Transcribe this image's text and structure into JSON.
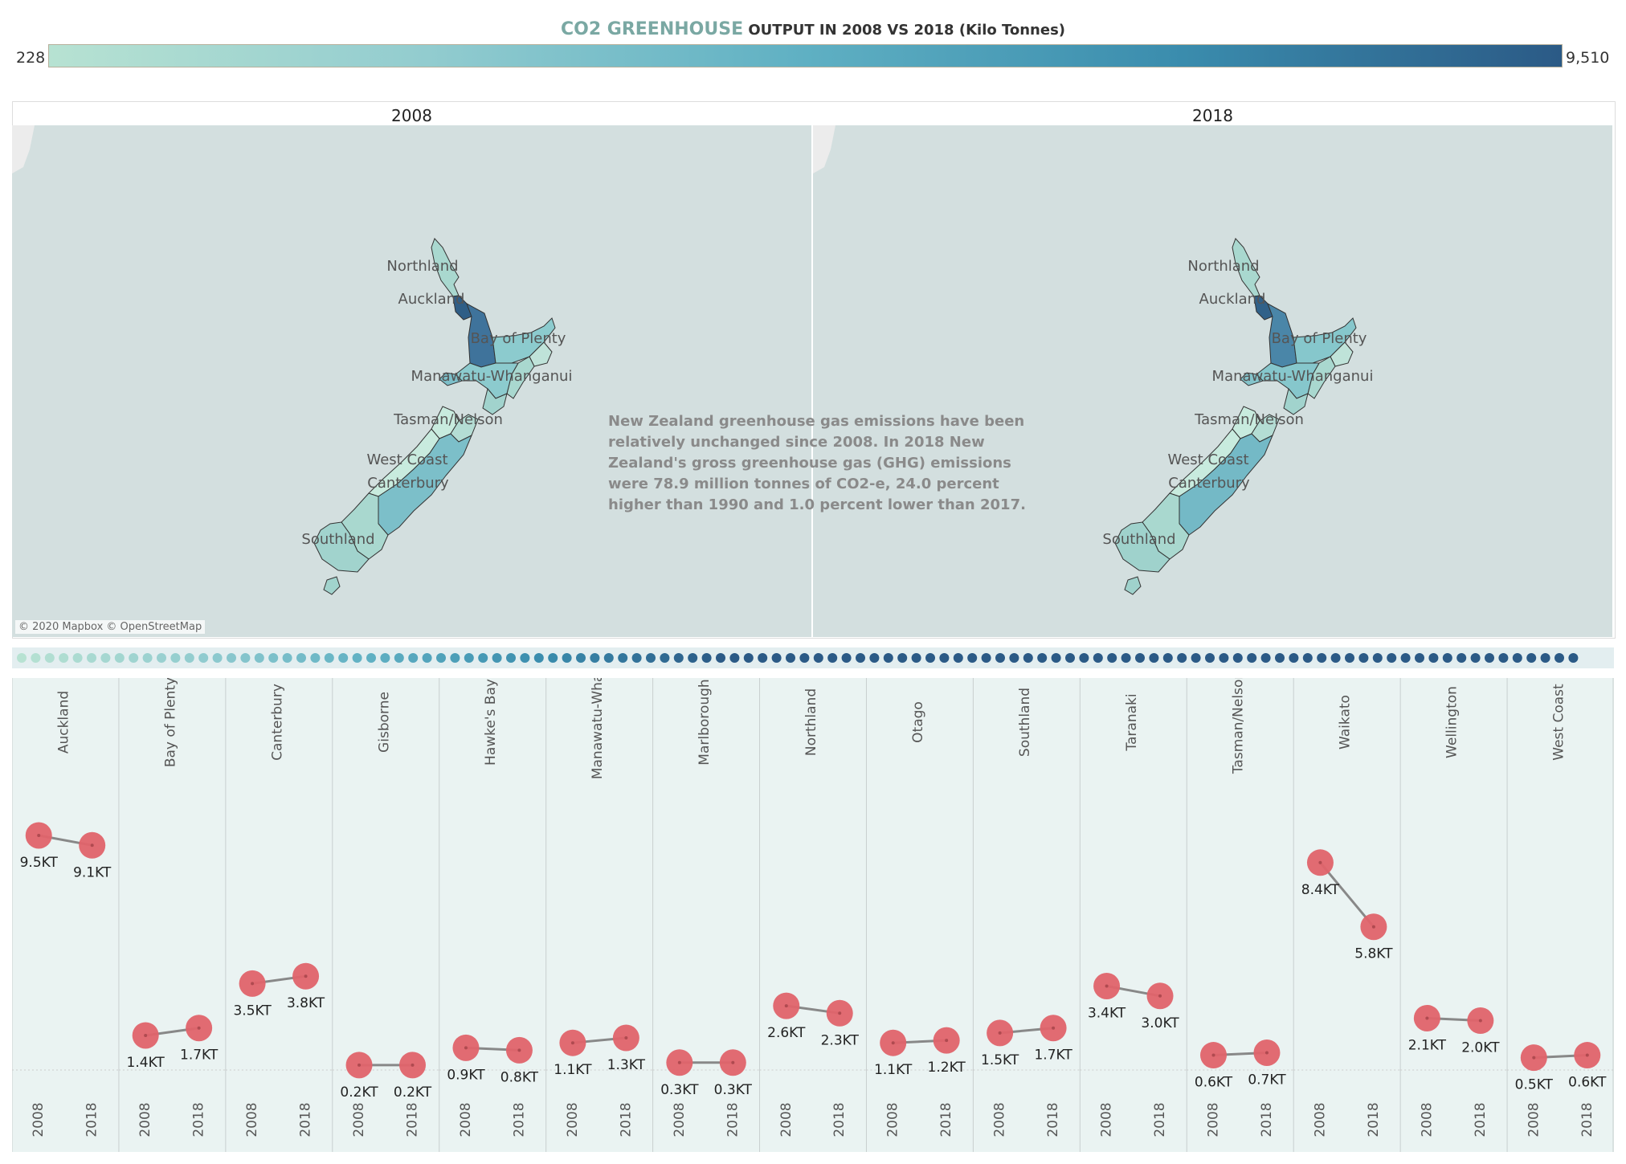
{
  "title": {
    "highlight": "CO2  GREENHOUSE",
    "rest": " OUTPUT IN  2008 VS 2018 (Kilo Tonnes)"
  },
  "legend": {
    "min_label": "228",
    "max_label": "9,510",
    "min_value": 228,
    "max_value": 9510,
    "color_low": "#b7e2d2",
    "color_high": "#2b5a86"
  },
  "maps": [
    {
      "header": "2008",
      "region_labels": [
        "Northland",
        "Auckland",
        "Bay of Plenty",
        "Manawatu-Whanganui",
        "Tasman/Nelson",
        "West Coast",
        "Canterbury",
        "Southland"
      ]
    },
    {
      "header": "2018",
      "region_labels": [
        "Northland",
        "Auckland",
        "Bay of Plenty",
        "Manawatu-Whanganui",
        "Tasman/Nelson",
        "West Coast",
        "Canterbury",
        "Southland"
      ]
    }
  ],
  "commentary": "New Zealand greenhouse gas emissions have been relatively unchanged since 2008. In 2018 New Zealand's gross greenhouse gas (GHG) emissions were 78.9 million tonnes of CO2-e, 24.0 percent higher than 1990 and 1.0 percent lower than 2017.",
  "attribution": "© 2020 Mapbox © OpenStreetMap",
  "colors": {
    "marker": "#e0636a",
    "connector": "#888888",
    "panel_bg": "#eaf3f2",
    "map_bg": "#d3dfdf"
  },
  "chart_data": {
    "type": "scatter",
    "title": "CO2  GREENHOUSE OUTPUT IN  2008 VS 2018 (Kilo Tonnes)",
    "x": [
      "2008",
      "2018"
    ],
    "ylim": [
      0,
      9.8
    ],
    "grid": false,
    "label_suffix": "KT",
    "series": [
      {
        "name": "Auckland",
        "values": [
          9.5,
          9.1
        ]
      },
      {
        "name": "Bay of Plenty",
        "values": [
          1.4,
          1.7
        ]
      },
      {
        "name": "Canterbury",
        "values": [
          3.5,
          3.8
        ]
      },
      {
        "name": "Gisborne",
        "values": [
          0.2,
          0.2
        ]
      },
      {
        "name": "Hawke's Bay",
        "values": [
          0.9,
          0.8
        ]
      },
      {
        "name": "Manawatu-Wha..",
        "values": [
          1.1,
          1.3
        ]
      },
      {
        "name": "Marlborough",
        "values": [
          0.3,
          0.3
        ]
      },
      {
        "name": "Northland",
        "values": [
          2.6,
          2.3
        ]
      },
      {
        "name": "Otago",
        "values": [
          1.1,
          1.2
        ]
      },
      {
        "name": "Southland",
        "values": [
          1.5,
          1.7
        ]
      },
      {
        "name": "Taranaki",
        "values": [
          3.4,
          3.0
        ]
      },
      {
        "name": "Tasman/Nelson",
        "values": [
          0.6,
          0.7
        ]
      },
      {
        "name": "Waikato",
        "values": [
          8.4,
          5.8
        ]
      },
      {
        "name": "Wellington",
        "values": [
          2.1,
          2.0
        ]
      },
      {
        "name": "West Coast",
        "values": [
          0.5,
          0.6
        ]
      }
    ]
  }
}
